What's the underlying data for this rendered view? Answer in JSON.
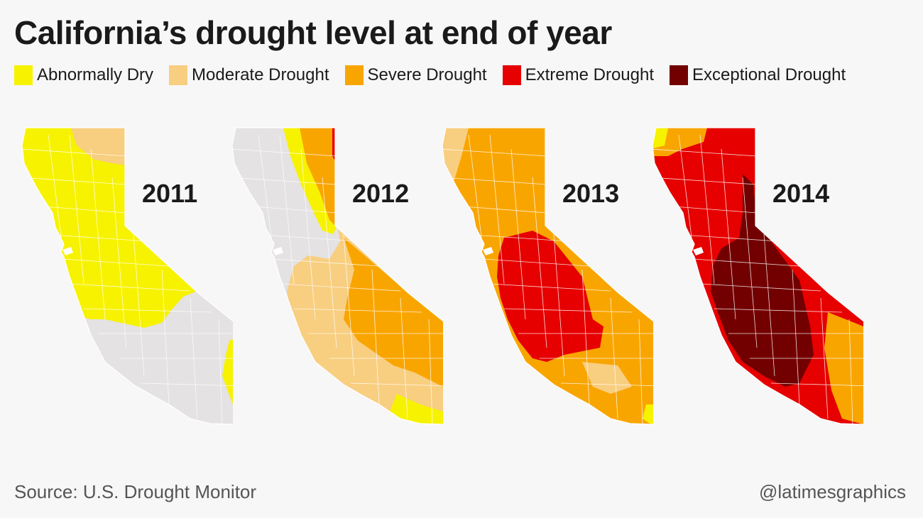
{
  "title": "California’s drought level at end of year",
  "legend": [
    {
      "label": "Abnormally Dry",
      "color": "#f7f200"
    },
    {
      "label": "Moderate Drought",
      "color": "#f8ce80"
    },
    {
      "label": "Severe Drought",
      "color": "#f9a500"
    },
    {
      "label": "Extreme Drought",
      "color": "#e60000"
    },
    {
      "label": "Exceptional Drought",
      "color": "#730000"
    }
  ],
  "no_drought_color": "#e4e2e2",
  "maps": [
    {
      "year": "2011"
    },
    {
      "year": "2012"
    },
    {
      "year": "2013"
    },
    {
      "year": "2014"
    }
  ],
  "footer": {
    "source": "Source: U.S. Drought Monitor",
    "credit": "@latimesgraphics"
  }
}
